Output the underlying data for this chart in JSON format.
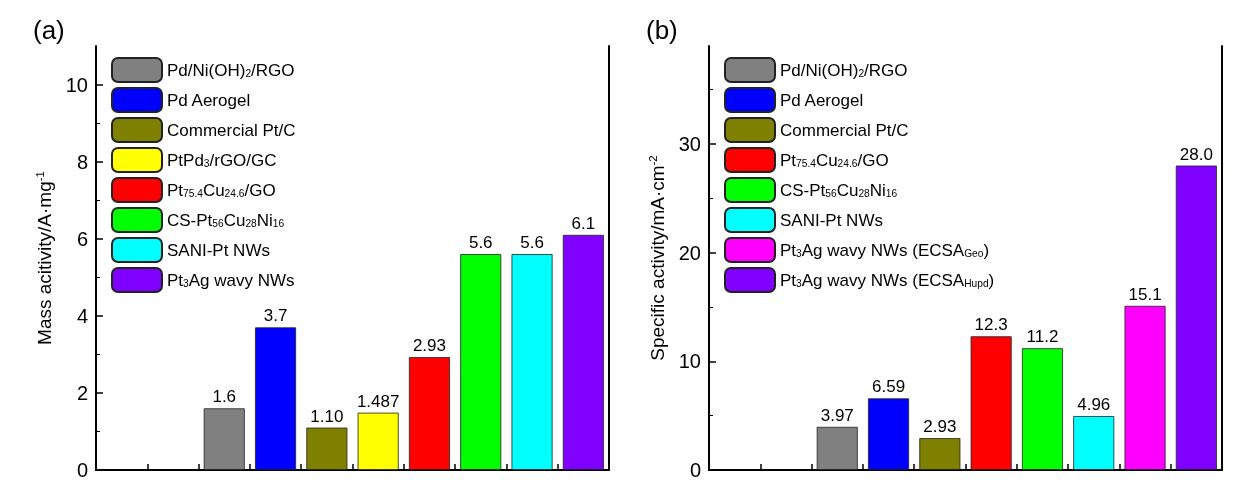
{
  "chart_data": [
    {
      "type": "bar",
      "title": "(a)",
      "ylabel": "Mass acitivity/A·mg$^{-1}$",
      "categories": [
        null,
        null,
        null,
        null,
        null,
        null,
        null,
        null,
        null,
        null
      ],
      "ylim": [
        0,
        11
      ],
      "yticks": [
        0,
        2,
        4,
        6,
        8,
        10
      ],
      "legend": "top left",
      "grid": false,
      "series": [
        {
          "name": "Pd/Ni(OH)$_{2}$/RGO",
          "color": "#808080",
          "values": [
            null,
            null,
            1.6,
            null,
            null,
            null,
            null,
            null,
            null,
            null
          ],
          "value_labels": [
            null,
            null,
            "1.6",
            null,
            null,
            null,
            null,
            null,
            null,
            null
          ]
        },
        {
          "name": "Pd Aerogel",
          "color": "#0000ff",
          "values": [
            null,
            null,
            null,
            3.7,
            null,
            null,
            null,
            null,
            null,
            null
          ],
          "value_labels": [
            null,
            null,
            null,
            "3.7",
            null,
            null,
            null,
            null,
            null,
            null
          ]
        },
        {
          "name": "Commercial Pt/C",
          "color": "#808000",
          "values": [
            null,
            null,
            null,
            null,
            1.1,
            null,
            null,
            null,
            null,
            null
          ],
          "value_labels": [
            null,
            null,
            null,
            null,
            "1.10",
            null,
            null,
            null,
            null,
            null
          ]
        },
        {
          "name": "PtPd$_{3}$/rGO/GC",
          "color": "#ffff00",
          "values": [
            null,
            null,
            null,
            null,
            null,
            1.487,
            null,
            null,
            null,
            null
          ],
          "value_labels": [
            null,
            null,
            null,
            null,
            null,
            "1.487",
            null,
            null,
            null,
            null
          ]
        },
        {
          "name": "Pt$_{75.4}$Cu$_{24.6}$/GO",
          "color": "#ff0000",
          "values": [
            null,
            null,
            null,
            null,
            null,
            null,
            2.93,
            null,
            null,
            null
          ],
          "value_labels": [
            null,
            null,
            null,
            null,
            null,
            null,
            "2.93",
            null,
            null,
            null
          ]
        },
        {
          "name": "CS-Pt$_{56}$Cu$_{28}$Ni$_{16}$",
          "color": "#00ff00",
          "values": [
            null,
            null,
            null,
            null,
            null,
            null,
            null,
            5.6,
            null,
            null
          ],
          "value_labels": [
            null,
            null,
            null,
            null,
            null,
            null,
            null,
            "5.6",
            null,
            null
          ]
        },
        {
          "name": "SANI-Pt NWs",
          "color": "#00ffff",
          "values": [
            null,
            null,
            null,
            null,
            null,
            null,
            null,
            null,
            5.6,
            null
          ],
          "value_labels": [
            null,
            null,
            null,
            null,
            null,
            null,
            null,
            null,
            "5.6",
            null
          ]
        },
        {
          "name": "Pt$_{3}$Ag wavy NWs",
          "color": "#8000ff",
          "values": [
            null,
            null,
            null,
            null,
            null,
            null,
            null,
            null,
            null,
            6.1
          ],
          "value_labels": [
            null,
            null,
            null,
            null,
            null,
            null,
            null,
            null,
            null,
            "6.1"
          ]
        }
      ]
    },
    {
      "type": "bar",
      "title": "(b)",
      "ylabel": "Specific activity/mA·cm$^{-2}$",
      "categories": [
        null,
        null,
        null,
        null,
        null,
        null,
        null,
        null,
        null,
        null
      ],
      "ylim": [
        0,
        39
      ],
      "yticks": [
        0,
        10,
        20,
        30
      ],
      "legend": "top left",
      "grid": false,
      "series": [
        {
          "name": "Pd/Ni(OH)$_{2}$/RGO",
          "color": "#808080",
          "values": [
            null,
            null,
            3.97,
            null,
            null,
            null,
            null,
            null,
            null,
            null
          ],
          "value_labels": [
            null,
            null,
            "3.97",
            null,
            null,
            null,
            null,
            null,
            null,
            null
          ]
        },
        {
          "name": "Pd Aerogel",
          "color": "#0000ff",
          "values": [
            null,
            null,
            null,
            6.59,
            null,
            null,
            null,
            null,
            null,
            null
          ],
          "value_labels": [
            null,
            null,
            null,
            "6.59",
            null,
            null,
            null,
            null,
            null,
            null
          ]
        },
        {
          "name": "Commercial Pt/C",
          "color": "#808000",
          "values": [
            null,
            null,
            null,
            null,
            2.93,
            null,
            null,
            null,
            null,
            null
          ],
          "value_labels": [
            null,
            null,
            null,
            null,
            "2.93",
            null,
            null,
            null,
            null,
            null
          ]
        },
        {
          "name": "Pt$_{75.4}$Cu$_{24.6}$/GO",
          "color": "#ff0000",
          "values": [
            null,
            null,
            null,
            null,
            null,
            12.3,
            null,
            null,
            null,
            null
          ],
          "value_labels": [
            null,
            null,
            null,
            null,
            null,
            "12.3",
            null,
            null,
            null,
            null
          ]
        },
        {
          "name": "CS-Pt$_{56}$Cu$_{28}$Ni$_{16}$",
          "color": "#00ff00",
          "values": [
            null,
            null,
            null,
            null,
            null,
            null,
            11.2,
            null,
            null,
            null
          ],
          "value_labels": [
            null,
            null,
            null,
            null,
            null,
            null,
            "11.2",
            null,
            null,
            null
          ]
        },
        {
          "name": "SANI-Pt NWs",
          "color": "#00ffff",
          "values": [
            null,
            null,
            null,
            null,
            null,
            null,
            null,
            4.96,
            null,
            null
          ],
          "value_labels": [
            null,
            null,
            null,
            null,
            null,
            null,
            null,
            "4.96",
            null,
            null
          ]
        },
        {
          "name": "Pt$_{3}$Ag wavy NWs (ECSA$_{Geo}$)",
          "color": "#ff00ff",
          "values": [
            null,
            null,
            null,
            null,
            null,
            null,
            null,
            null,
            15.1,
            null
          ],
          "value_labels": [
            null,
            null,
            null,
            null,
            null,
            null,
            null,
            null,
            "15.1",
            null
          ]
        },
        {
          "name": "Pt$_{3}$Ag wavy NWs (ECSA$_{Hupd}$)",
          "color": "#8000ff",
          "values": [
            null,
            null,
            null,
            null,
            null,
            null,
            null,
            null,
            null,
            28.0
          ],
          "value_labels": [
            null,
            null,
            null,
            null,
            null,
            null,
            null,
            null,
            null,
            "28.0"
          ]
        }
      ]
    }
  ]
}
